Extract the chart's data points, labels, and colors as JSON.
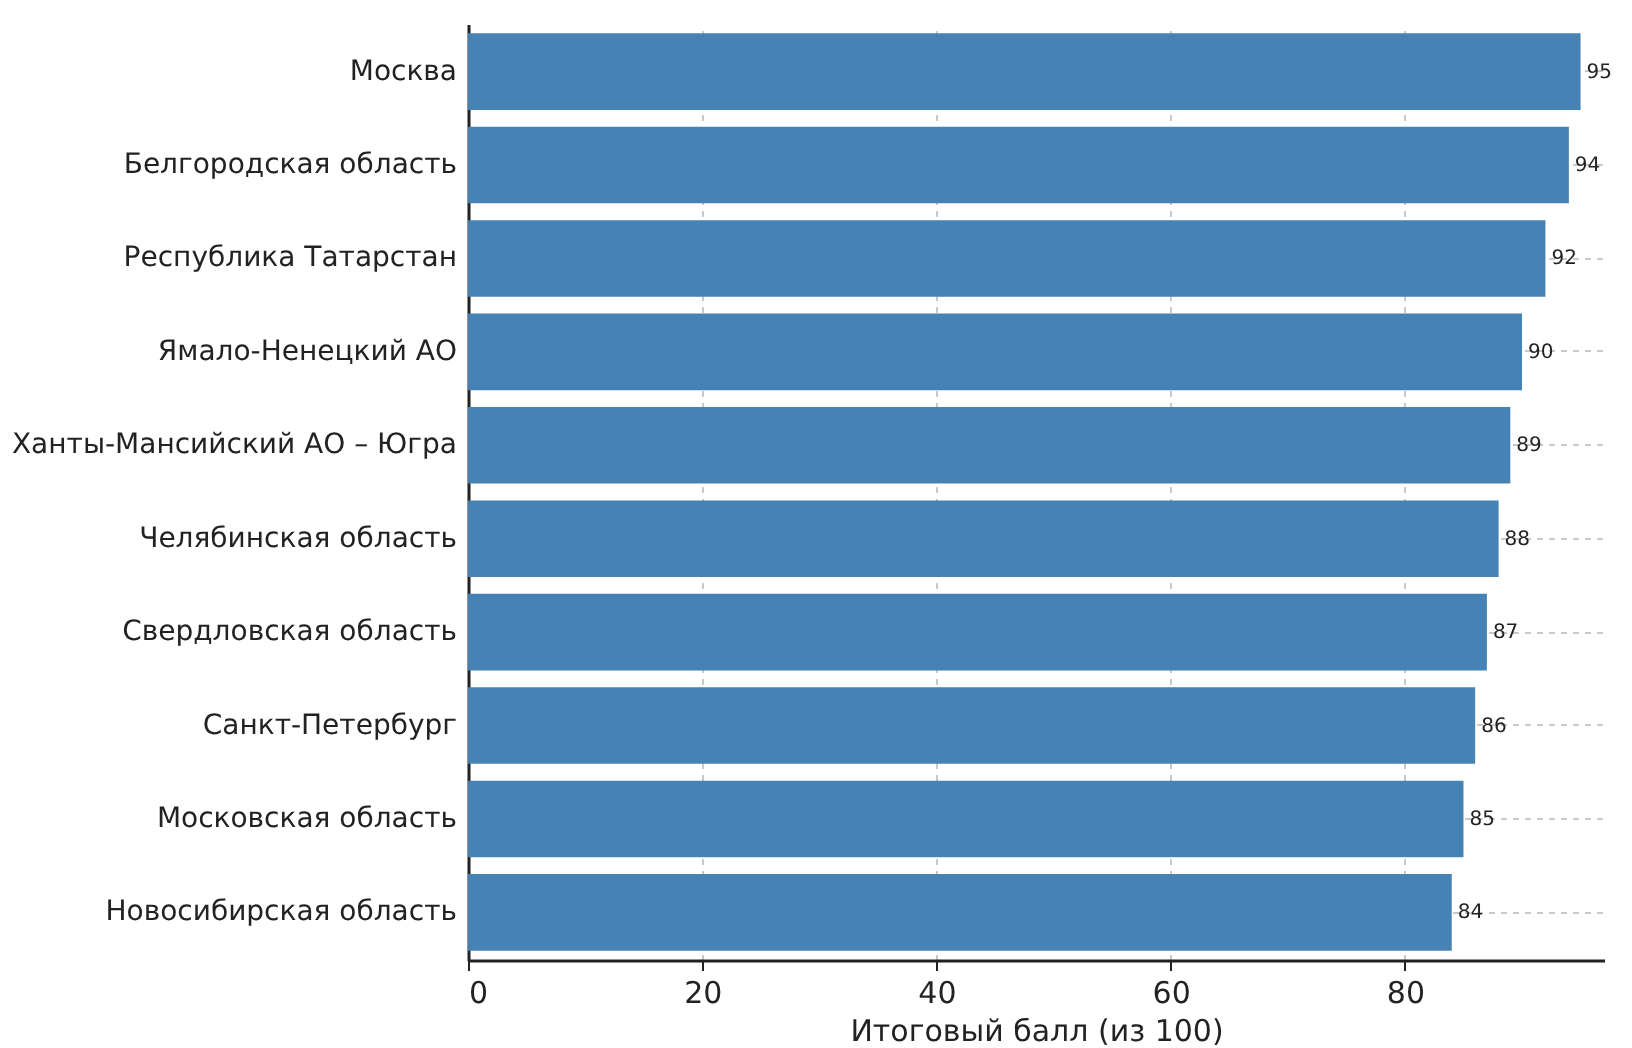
{
  "chart_data": {
    "type": "bar",
    "orientation": "horizontal",
    "xlabel": "Итоговый балл (из 100)",
    "categories": [
      "Москва",
      "Белгородская область",
      "Республика Татарстан",
      "Ямало-Ненецкий АО",
      "Ханты-Мансийский АО – Югра",
      "Челябинская область",
      "Свердловская область",
      "Санкт-Петербург",
      "Московская область",
      "Новосибирская область"
    ],
    "values": [
      95,
      94,
      92,
      90,
      89,
      88,
      87,
      86,
      85,
      84
    ],
    "color": "#4682b4",
    "xlim": [
      0,
      97
    ],
    "xticks": [
      0,
      20,
      40,
      60,
      80
    ],
    "grid": true,
    "data_labels": true
  }
}
